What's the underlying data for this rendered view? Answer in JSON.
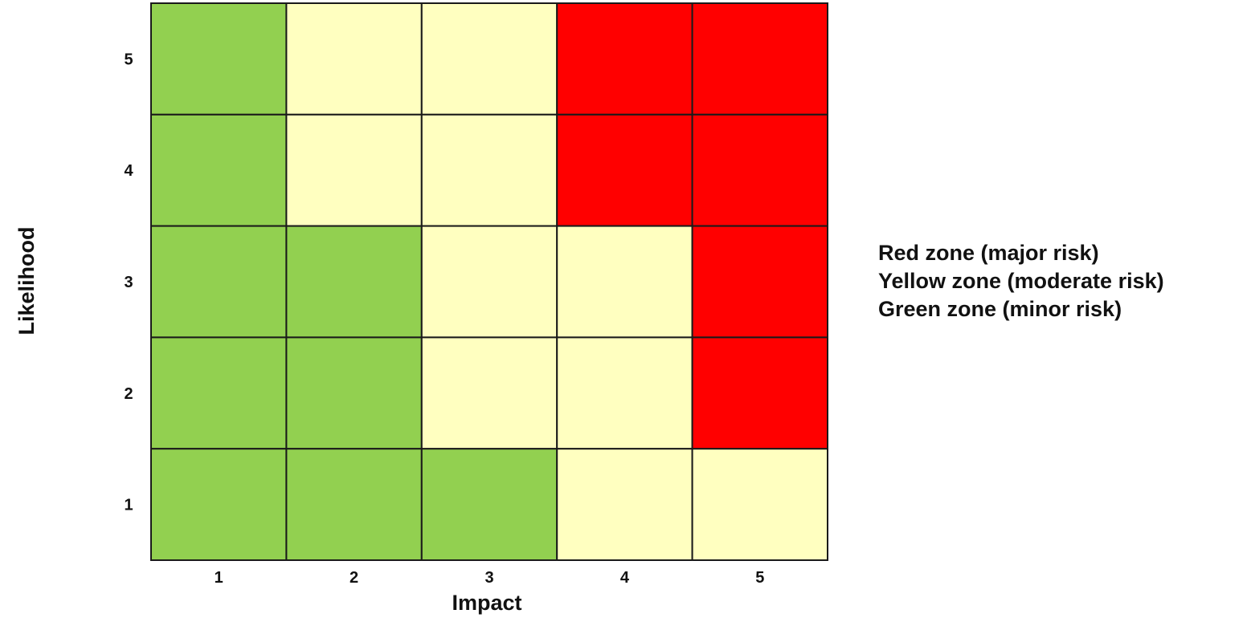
{
  "chart_data": {
    "type": "heatmap",
    "title": "",
    "xlabel": "Impact",
    "ylabel": "Likelihood",
    "x": [
      "1",
      "2",
      "3",
      "4",
      "5"
    ],
    "y": [
      "1",
      "2",
      "3",
      "4",
      "5"
    ],
    "zones": {
      "red": {
        "label": "Red zone (major risk)",
        "color": "#ff0000"
      },
      "yellow": {
        "label": "Yellow zone (moderate risk)",
        "color": "#ffffc0"
      },
      "green": {
        "label": "Green zone (minor risk)",
        "color": "#92d050"
      }
    },
    "grid_by_likelihood_desc": [
      [
        "green",
        "yellow",
        "yellow",
        "red",
        "red"
      ],
      [
        "green",
        "yellow",
        "yellow",
        "red",
        "red"
      ],
      [
        "green",
        "green",
        "yellow",
        "yellow",
        "red"
      ],
      [
        "green",
        "green",
        "yellow",
        "yellow",
        "red"
      ],
      [
        "green",
        "green",
        "green",
        "yellow",
        "yellow"
      ]
    ],
    "legend_position": "right"
  },
  "legend": {
    "items": [
      "Red zone (major risk)",
      "Yellow zone (moderate risk)",
      "Green zone (minor risk)"
    ]
  }
}
